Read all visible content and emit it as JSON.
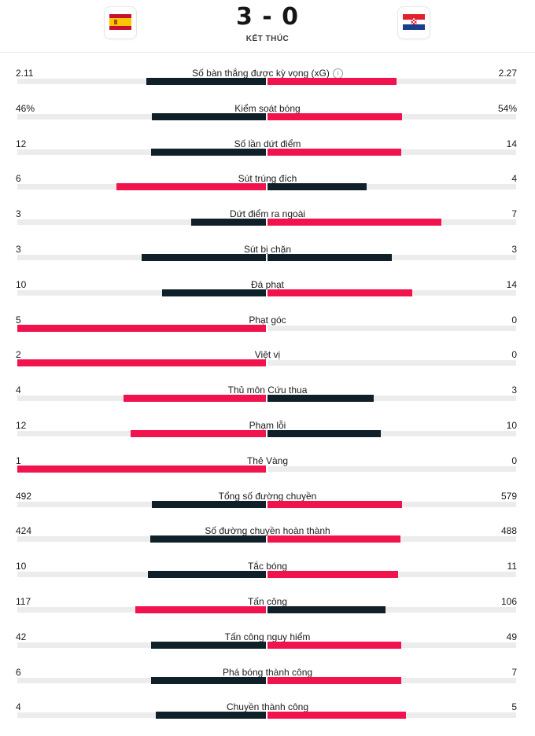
{
  "match": {
    "score": "3 - 0",
    "status": "KẾT THÚC",
    "home_flag": "spain-flag",
    "away_flag": "croatia-flag"
  },
  "colors": {
    "leader": "#f0134d",
    "trailer": "#0f2029",
    "track": "#ececec"
  },
  "stats": [
    {
      "label": "Số bàn thắng được kỳ vọng (xG)",
      "left": "2.11",
      "right": "2.27",
      "lv": 2.11,
      "rv": 2.27,
      "info": true,
      "info_icon": "info-icon"
    },
    {
      "label": "Kiểm soát bóng",
      "left": "46%",
      "right": "54%",
      "lv": 46,
      "rv": 54
    },
    {
      "label": "Số lần dứt điểm",
      "left": "12",
      "right": "14",
      "lv": 12,
      "rv": 14
    },
    {
      "label": "Sút trúng đích",
      "left": "6",
      "right": "4",
      "lv": 6,
      "rv": 4
    },
    {
      "label": "Dứt điểm ra ngoài",
      "left": "3",
      "right": "7",
      "lv": 3,
      "rv": 7
    },
    {
      "label": "Sút bị chặn",
      "left": "3",
      "right": "3",
      "lv": 3,
      "rv": 3
    },
    {
      "label": "Đá phạt",
      "left": "10",
      "right": "14",
      "lv": 10,
      "rv": 14
    },
    {
      "label": "Phạt góc",
      "left": "5",
      "right": "0",
      "lv": 5,
      "rv": 0
    },
    {
      "label": "Việt vị",
      "left": "2",
      "right": "0",
      "lv": 2,
      "rv": 0
    },
    {
      "label": "Thủ môn Cứu thua",
      "left": "4",
      "right": "3",
      "lv": 4,
      "rv": 3
    },
    {
      "label": "Phạm lỗi",
      "left": "12",
      "right": "10",
      "lv": 12,
      "rv": 10
    },
    {
      "label": "Thẻ Vàng",
      "left": "1",
      "right": "0",
      "lv": 1,
      "rv": 0
    },
    {
      "label": "Tổng số đường chuyền",
      "left": "492",
      "right": "579",
      "lv": 492,
      "rv": 579
    },
    {
      "label": "Số đường chuyền hoàn thành",
      "left": "424",
      "right": "488",
      "lv": 424,
      "rv": 488
    },
    {
      "label": "Tắc bóng",
      "left": "10",
      "right": "11",
      "lv": 10,
      "rv": 11
    },
    {
      "label": "Tấn công",
      "left": "117",
      "right": "106",
      "lv": 117,
      "rv": 106
    },
    {
      "label": "Tấn công nguy hiểm",
      "left": "42",
      "right": "49",
      "lv": 42,
      "rv": 49
    },
    {
      "label": "Phá bóng thành công",
      "left": "6",
      "right": "7",
      "lv": 6,
      "rv": 7
    },
    {
      "label": "Chuyền thành công",
      "left": "4",
      "right": "5",
      "lv": 4,
      "rv": 5
    }
  ]
}
